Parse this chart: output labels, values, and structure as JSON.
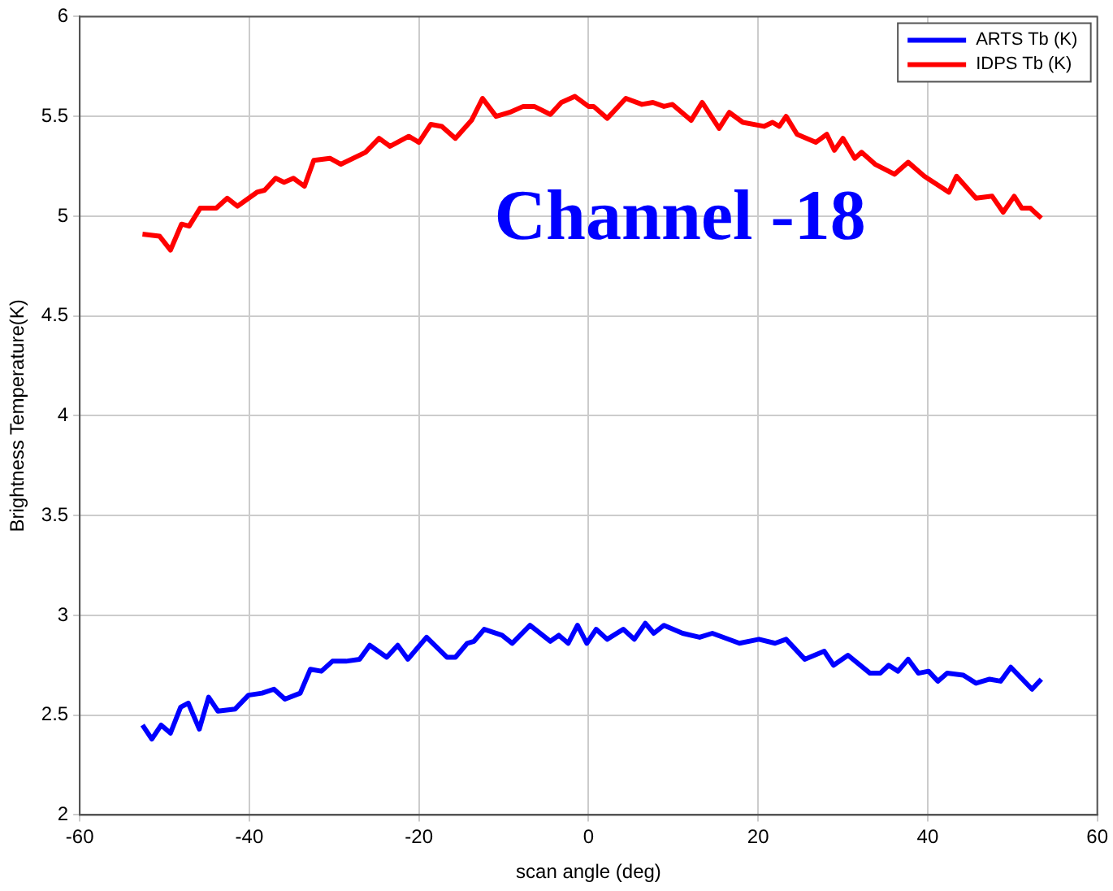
{
  "chart_data": {
    "type": "line",
    "xlabel": "scan angle (deg)",
    "ylabel": "Brightness Temperature(K)",
    "annotations": [
      "Channel -18"
    ],
    "xlim": [
      -60,
      60
    ],
    "xticks": [
      -60,
      -40,
      -20,
      0,
      20,
      40,
      60
    ],
    "ylim": [
      2,
      6
    ],
    "yticks": [
      2,
      2.5,
      3,
      3.5,
      4,
      4.5,
      5,
      5.5,
      6
    ],
    "grid": true,
    "legend": "top right",
    "marker": "none",
    "line_style": "solid",
    "series": [
      {
        "name": "ARTS Tb (K)",
        "color": "#0000ff",
        "x": [
          -52.6,
          -51.5,
          -50.4,
          -49.3,
          -48.1,
          -47.2,
          -45.9,
          -44.8,
          -43.7,
          -41.7,
          -40.1,
          -38.5,
          -37.1,
          -35.8,
          -34.0,
          -32.8,
          -31.5,
          -30.2,
          -28.6,
          -27.0,
          -25.8,
          -23.8,
          -22.5,
          -21.3,
          -19.1,
          -16.7,
          -15.7,
          -14.3,
          -13.5,
          -12.3,
          -10.2,
          -9.0,
          -6.9,
          -4.5,
          -3.5,
          -2.4,
          -1.3,
          -0.2,
          0.9,
          2.2,
          4.1,
          5.4,
          6.7,
          7.7,
          8.9,
          11.1,
          13.1,
          14.6,
          17.8,
          20.1,
          22.0,
          23.3,
          25.5,
          27.8,
          28.9,
          30.6,
          33.2,
          34.4,
          35.4,
          36.5,
          37.7,
          38.9,
          40.1,
          41.2,
          42.3,
          44.2,
          45.7,
          47.3,
          48.6,
          49.8,
          52.3,
          53.4
        ],
        "values": [
          2.45,
          2.38,
          2.45,
          2.41,
          2.54,
          2.56,
          2.43,
          2.59,
          2.52,
          2.53,
          2.6,
          2.61,
          2.63,
          2.58,
          2.61,
          2.73,
          2.72,
          2.77,
          2.77,
          2.78,
          2.85,
          2.79,
          2.85,
          2.78,
          2.89,
          2.79,
          2.79,
          2.86,
          2.87,
          2.93,
          2.9,
          2.86,
          2.95,
          2.87,
          2.9,
          2.86,
          2.95,
          2.86,
          2.93,
          2.88,
          2.93,
          2.88,
          2.96,
          2.91,
          2.95,
          2.91,
          2.89,
          2.91,
          2.86,
          2.88,
          2.86,
          2.88,
          2.78,
          2.82,
          2.75,
          2.8,
          2.71,
          2.71,
          2.75,
          2.72,
          2.78,
          2.71,
          2.72,
          2.67,
          2.71,
          2.7,
          2.66,
          2.68,
          2.67,
          2.74,
          2.63,
          2.68
        ]
      },
      {
        "name": "IDPS Tb (K)",
        "color": "#ff0000",
        "x": [
          -52.6,
          -50.6,
          -49.3,
          -48.0,
          -47.1,
          -45.8,
          -43.9,
          -42.6,
          -41.4,
          -39.1,
          -38.2,
          -36.9,
          -35.9,
          -34.8,
          -33.5,
          -32.4,
          -30.5,
          -29.2,
          -26.3,
          -24.7,
          -23.4,
          -21.2,
          -20.0,
          -18.6,
          -17.3,
          -15.7,
          -13.8,
          -12.5,
          -10.9,
          -9.3,
          -7.7,
          -6.4,
          -4.5,
          -3.2,
          -1.6,
          0.0,
          0.6,
          2.2,
          4.4,
          6.3,
          7.6,
          8.9,
          9.9,
          12.1,
          13.4,
          15.4,
          16.6,
          18.2,
          20.7,
          21.7,
          22.5,
          23.3,
          24.6,
          26.8,
          28.1,
          29.0,
          30.0,
          31.4,
          32.2,
          33.8,
          36.1,
          37.7,
          39.6,
          42.5,
          43.4,
          45.7,
          47.6,
          48.9,
          50.2,
          51.1,
          52.1,
          53.4
        ],
        "values": [
          4.91,
          4.9,
          4.83,
          4.96,
          4.95,
          5.04,
          5.04,
          5.09,
          5.05,
          5.12,
          5.13,
          5.19,
          5.17,
          5.19,
          5.15,
          5.28,
          5.29,
          5.26,
          5.32,
          5.39,
          5.35,
          5.4,
          5.37,
          5.46,
          5.45,
          5.39,
          5.48,
          5.59,
          5.5,
          5.52,
          5.55,
          5.55,
          5.51,
          5.57,
          5.6,
          5.55,
          5.55,
          5.49,
          5.59,
          5.56,
          5.57,
          5.55,
          5.56,
          5.48,
          5.57,
          5.44,
          5.52,
          5.47,
          5.45,
          5.47,
          5.45,
          5.5,
          5.41,
          5.37,
          5.41,
          5.33,
          5.39,
          5.29,
          5.32,
          5.26,
          5.21,
          5.27,
          5.2,
          5.12,
          5.2,
          5.09,
          5.1,
          5.02,
          5.1,
          5.04,
          5.04,
          4.99
        ]
      }
    ]
  }
}
